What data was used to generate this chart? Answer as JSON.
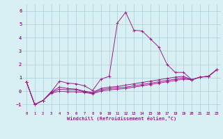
{
  "title": "",
  "xlabel": "Windchill (Refroidissement éolien,°C)",
  "ylabel": "",
  "bg_color": "#d8eff4",
  "line_color": "#9b1f8a",
  "grid_color": "#aacfd8",
  "xlim": [
    -0.5,
    23.5
  ],
  "ylim": [
    -1.5,
    6.5
  ],
  "yticks": [
    -1,
    0,
    1,
    2,
    3,
    4,
    5,
    6
  ],
  "xticks": [
    0,
    1,
    2,
    3,
    4,
    5,
    6,
    7,
    8,
    9,
    10,
    11,
    12,
    13,
    14,
    15,
    16,
    17,
    18,
    19,
    20,
    21,
    22,
    23
  ],
  "series": [
    [
      0,
      0.7
    ],
    [
      1,
      -1.0
    ],
    [
      2,
      -0.7
    ],
    [
      3,
      -0.05
    ],
    [
      4,
      0.75
    ],
    [
      5,
      0.6
    ],
    [
      6,
      0.55
    ],
    [
      7,
      0.4
    ],
    [
      8,
      0.05
    ],
    [
      9,
      0.9
    ],
    [
      10,
      1.1
    ],
    [
      11,
      5.1
    ],
    [
      12,
      5.9
    ],
    [
      13,
      4.55
    ],
    [
      14,
      4.5
    ],
    [
      15,
      3.9
    ],
    [
      16,
      3.3
    ],
    [
      17,
      2.0
    ],
    [
      18,
      1.4
    ],
    [
      19,
      1.4
    ],
    [
      20,
      0.85
    ],
    [
      21,
      1.05
    ],
    [
      22,
      1.1
    ],
    [
      23,
      1.6
    ]
  ],
  "series2": [
    [
      0,
      0.7
    ],
    [
      1,
      -1.0
    ],
    [
      2,
      -0.7
    ],
    [
      3,
      -0.05
    ],
    [
      4,
      0.3
    ],
    [
      5,
      0.2
    ],
    [
      6,
      0.15
    ],
    [
      7,
      0.0
    ],
    [
      8,
      -0.1
    ],
    [
      9,
      0.2
    ],
    [
      10,
      0.3
    ],
    [
      11,
      0.35
    ],
    [
      12,
      0.45
    ],
    [
      13,
      0.55
    ],
    [
      14,
      0.65
    ],
    [
      15,
      0.75
    ],
    [
      16,
      0.85
    ],
    [
      17,
      0.95
    ],
    [
      18,
      1.05
    ],
    [
      19,
      1.1
    ],
    [
      20,
      0.85
    ],
    [
      21,
      1.05
    ],
    [
      22,
      1.1
    ],
    [
      23,
      1.6
    ]
  ],
  "series3": [
    [
      0,
      0.7
    ],
    [
      1,
      -1.0
    ],
    [
      2,
      -0.7
    ],
    [
      3,
      -0.1
    ],
    [
      4,
      0.15
    ],
    [
      5,
      0.1
    ],
    [
      6,
      0.1
    ],
    [
      7,
      -0.05
    ],
    [
      8,
      -0.15
    ],
    [
      9,
      0.1
    ],
    [
      10,
      0.2
    ],
    [
      11,
      0.25
    ],
    [
      12,
      0.3
    ],
    [
      13,
      0.4
    ],
    [
      14,
      0.5
    ],
    [
      15,
      0.6
    ],
    [
      16,
      0.7
    ],
    [
      17,
      0.8
    ],
    [
      18,
      0.9
    ],
    [
      19,
      1.0
    ],
    [
      20,
      0.85
    ],
    [
      21,
      1.05
    ],
    [
      22,
      1.1
    ],
    [
      23,
      1.6
    ]
  ],
  "series4": [
    [
      0,
      0.7
    ],
    [
      1,
      -1.0
    ],
    [
      2,
      -0.7
    ],
    [
      3,
      -0.15
    ],
    [
      4,
      0.0
    ],
    [
      5,
      -0.05
    ],
    [
      6,
      -0.05
    ],
    [
      7,
      -0.1
    ],
    [
      8,
      -0.2
    ],
    [
      9,
      0.0
    ],
    [
      10,
      0.1
    ],
    [
      11,
      0.15
    ],
    [
      12,
      0.2
    ],
    [
      13,
      0.3
    ],
    [
      14,
      0.4
    ],
    [
      15,
      0.5
    ],
    [
      16,
      0.6
    ],
    [
      17,
      0.7
    ],
    [
      18,
      0.8
    ],
    [
      19,
      0.9
    ],
    [
      20,
      0.85
    ],
    [
      21,
      1.05
    ],
    [
      22,
      1.1
    ],
    [
      23,
      1.6
    ]
  ]
}
